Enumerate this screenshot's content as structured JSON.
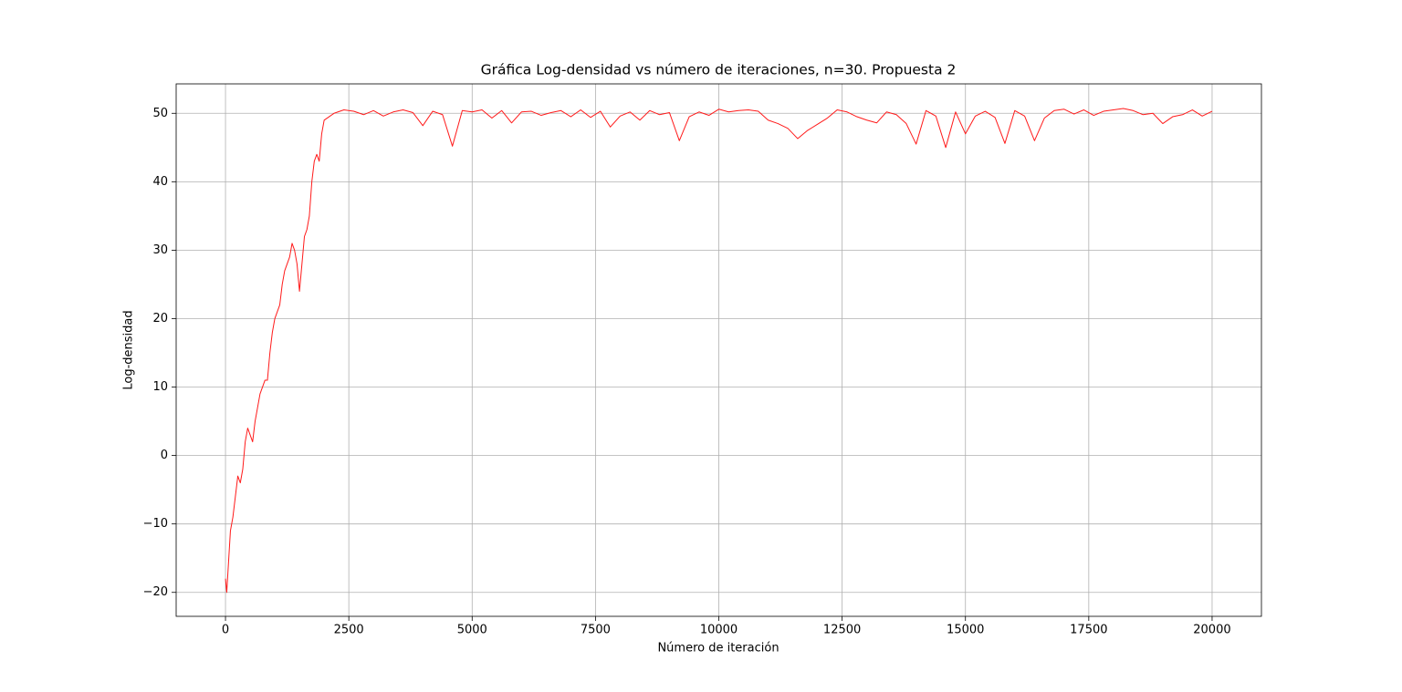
{
  "chart_data": {
    "type": "line",
    "title": "Gráfica Log-densidad vs número de iteraciones, n=30. Propuesta 2",
    "xlabel": "Número de iteración",
    "ylabel": "Log-densidad",
    "xlim": [
      -1000,
      21000
    ],
    "ylim": [
      -23.5,
      54.3
    ],
    "xticks": [
      0,
      2500,
      5000,
      7500,
      10000,
      12500,
      15000,
      17500,
      20000
    ],
    "yticks": [
      {
        "value": -20,
        "label": "−20"
      },
      {
        "value": -10,
        "label": "−10"
      },
      0,
      10,
      20,
      30,
      40,
      50
    ],
    "grid": true,
    "series": [
      {
        "color": "#ff1a1a",
        "x": [
          0,
          25,
          50,
          100,
          150,
          200,
          250,
          300,
          350,
          400,
          450,
          500,
          550,
          600,
          650,
          700,
          750,
          800,
          850,
          900,
          950,
          1000,
          1050,
          1100,
          1150,
          1200,
          1250,
          1300,
          1350,
          1400,
          1450,
          1500,
          1550,
          1600,
          1650,
          1700,
          1750,
          1800,
          1850,
          1900,
          1950,
          2000,
          2100,
          2200,
          2400,
          2600,
          2800,
          3000,
          3200,
          3400,
          3600,
          3800,
          4000,
          4200,
          4400,
          4600,
          4800,
          5000,
          5200,
          5400,
          5600,
          5800,
          6000,
          6200,
          6400,
          6600,
          6800,
          7000,
          7200,
          7400,
          7600,
          7800,
          8000,
          8200,
          8400,
          8600,
          8800,
          9000,
          9200,
          9400,
          9600,
          9800,
          10000,
          10200,
          10400,
          10600,
          10800,
          11000,
          11200,
          11400,
          11600,
          11800,
          12000,
          12200,
          12400,
          12600,
          12800,
          13000,
          13200,
          13400,
          13600,
          13800,
          14000,
          14200,
          14400,
          14600,
          14800,
          15000,
          15200,
          15400,
          15600,
          15800,
          16000,
          16200,
          16400,
          16600,
          16800,
          17000,
          17200,
          17400,
          17600,
          17800,
          18000,
          18200,
          18400,
          18600,
          18800,
          19000,
          19200,
          19400,
          19600,
          19800,
          20000
        ],
        "values": [
          -18,
          -20,
          -17,
          -11,
          -9,
          -6,
          -3,
          -4,
          -2,
          2,
          4,
          3,
          2,
          5,
          7,
          9,
          10,
          11,
          11,
          15,
          18,
          20,
          21,
          22,
          25,
          27,
          28,
          29,
          31,
          30,
          28,
          24,
          28,
          32,
          33,
          35,
          40,
          43,
          44,
          43,
          47,
          49,
          49.5,
          50,
          50.5,
          50.3,
          49.8,
          50.4,
          49.6,
          50.2,
          50.5,
          50.1,
          48.2,
          50.3,
          49.8,
          45.2,
          50.4,
          50.2,
          50.5,
          49.3,
          50.4,
          48.6,
          50.2,
          50.3,
          49.7,
          50.1,
          50.4,
          49.5,
          50.5,
          49.4,
          50.3,
          48.0,
          49.6,
          50.2,
          49.0,
          50.4,
          49.8,
          50.1,
          46.0,
          49.5,
          50.2,
          49.7,
          50.6,
          50.2,
          50.4,
          50.5,
          50.3,
          49.0,
          48.5,
          47.8,
          46.3,
          47.5,
          48.4,
          49.3,
          50.5,
          50.2,
          49.5,
          49.0,
          48.6,
          50.2,
          49.8,
          48.5,
          45.5,
          50.4,
          49.6,
          45.0,
          50.2,
          47.0,
          49.6,
          50.3,
          49.4,
          45.6,
          50.4,
          49.6,
          46.0,
          49.3,
          50.4,
          50.6,
          49.9,
          50.5,
          49.7,
          50.3,
          50.5,
          50.7,
          50.4,
          49.8,
          50.0,
          48.5,
          49.5,
          49.8,
          50.5,
          49.6,
          50.3
        ]
      }
    ]
  }
}
